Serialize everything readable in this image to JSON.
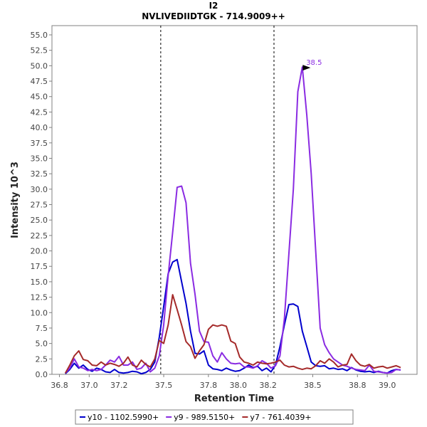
{
  "chart_data": {
    "type": "line",
    "title": "I2",
    "subtitle": "NVLIVEDIIDTGK - 714.9009++",
    "xlabel": "Retention Time",
    "ylabel": "Intensity 10^3",
    "xlim": [
      36.75,
      39.2
    ],
    "ylim": [
      0,
      56.5
    ],
    "x_ticks": [
      36.8,
      37.0,
      37.2,
      37.5,
      37.8,
      38.0,
      38.2,
      38.5,
      38.8,
      39.0
    ],
    "x_tick_labels": [
      "36.8",
      "37.0",
      "37.2",
      "37.5",
      "37.8",
      "38.0",
      "38.2",
      "38.5",
      "38.8",
      "39.0"
    ],
    "y_ticks": [
      0,
      2.5,
      5,
      7.5,
      10,
      12.5,
      15,
      17.5,
      20,
      22.5,
      25,
      27.5,
      30,
      32.5,
      35,
      37.5,
      40,
      42.5,
      45,
      47.5,
      50,
      52.5,
      55
    ],
    "y_tick_labels": [
      "0.0",
      "2.5",
      "5.0",
      "7.5",
      "10.0",
      "12.5",
      "15.0",
      "17.5",
      "20.0",
      "22.5",
      "25.0",
      "27.5",
      "30.0",
      "32.5",
      "35.0",
      "37.5",
      "40.0",
      "42.5",
      "45.0",
      "47.5",
      "50.0",
      "52.5",
      "55.0"
    ],
    "grid": false,
    "legend_position": "bottom",
    "boundaries": [
      37.48,
      38.24
    ],
    "annotation": {
      "label": "38.5",
      "x": 38.49,
      "y": 49.8,
      "color": "#8a2be2"
    },
    "series": [
      {
        "name": "y10 - 1102.5990+",
        "color": "#0000cd",
        "x": [
          36.84,
          36.87,
          36.9,
          36.93,
          36.96,
          36.99,
          37.02,
          37.05,
          37.08,
          37.11,
          37.14,
          37.17,
          37.2,
          37.23,
          37.26,
          37.29,
          37.32,
          37.35,
          37.38,
          37.41,
          37.44,
          37.47,
          37.5,
          37.53,
          37.56,
          37.59,
          37.62,
          37.65,
          37.68,
          37.71,
          37.74,
          37.77,
          37.8,
          37.83,
          37.86,
          37.89,
          37.92,
          37.95,
          37.98,
          38.01,
          38.04,
          38.07,
          38.1,
          38.13,
          38.16,
          38.19,
          38.22,
          38.25,
          38.28,
          38.31,
          38.34,
          38.37,
          38.4,
          38.43,
          38.46,
          38.49,
          38.52,
          38.55,
          38.58,
          38.61,
          38.64,
          38.67,
          38.7,
          38.73,
          38.76,
          38.79,
          38.82,
          38.85,
          38.88,
          38.91,
          38.94,
          38.97,
          39.0,
          39.03,
          39.06,
          39.09
        ],
        "y": [
          0.1,
          0.8,
          1.8,
          1.0,
          1.5,
          0.8,
          0.5,
          1.0,
          0.8,
          0.4,
          0.3,
          0.8,
          0.3,
          0.2,
          0.3,
          0.5,
          0.4,
          0.1,
          0.3,
          0.8,
          2.0,
          6.0,
          11.0,
          16.3,
          18.2,
          18.6,
          15.0,
          11.5,
          7.0,
          3.4,
          3.3,
          3.8,
          1.5,
          0.9,
          0.8,
          0.6,
          1.0,
          0.7,
          0.5,
          0.6,
          1.0,
          1.5,
          1.1,
          1.3,
          0.6,
          1.0,
          0.4,
          1.5,
          4.5,
          8.0,
          11.3,
          11.4,
          11.0,
          7.0,
          4.5,
          2.0,
          1.4,
          1.3,
          1.4,
          0.9,
          1.0,
          0.8,
          0.9,
          0.6,
          1.1,
          0.7,
          0.5,
          0.4,
          0.5,
          0.3,
          0.5,
          0.3,
          0.2,
          0.6,
          0.8,
          0.7
        ]
      },
      {
        "name": "y9 - 989.5150+",
        "color": "#8a2be2",
        "x": [
          36.84,
          36.87,
          36.9,
          36.93,
          36.96,
          36.99,
          37.02,
          37.05,
          37.08,
          37.11,
          37.14,
          37.17,
          37.2,
          37.23,
          37.26,
          37.29,
          37.32,
          37.35,
          37.38,
          37.41,
          37.44,
          37.47,
          37.5,
          37.53,
          37.56,
          37.59,
          37.62,
          37.65,
          37.68,
          37.71,
          37.74,
          37.77,
          37.8,
          37.83,
          37.86,
          37.89,
          37.92,
          37.95,
          37.98,
          38.01,
          38.04,
          38.07,
          38.1,
          38.13,
          38.16,
          38.19,
          38.22,
          38.25,
          38.28,
          38.31,
          38.34,
          38.37,
          38.4,
          38.43,
          38.46,
          38.49,
          38.52,
          38.55,
          38.58,
          38.61,
          38.64,
          38.67,
          38.7,
          38.73,
          38.76,
          38.79,
          38.82,
          38.85,
          38.88,
          38.91,
          38.94,
          38.97,
          39.0,
          39.03,
          39.06,
          39.09
        ],
        "y": [
          0.2,
          1.0,
          2.5,
          1.2,
          1.0,
          0.6,
          0.8,
          0.6,
          0.8,
          1.5,
          2.3,
          2.0,
          2.9,
          1.5,
          1.5,
          2.0,
          0.8,
          1.0,
          1.8,
          0.4,
          1.0,
          3.0,
          8.0,
          16.0,
          23.0,
          30.3,
          30.5,
          27.8,
          18.0,
          13.0,
          7.0,
          5.3,
          5.2,
          3.0,
          2.0,
          3.5,
          2.5,
          1.8,
          1.7,
          1.8,
          1.2,
          1.2,
          1.0,
          1.4,
          2.2,
          1.8,
          1.0,
          1.4,
          3.0,
          9.0,
          19.5,
          30.0,
          45.8,
          49.8,
          42.0,
          32.5,
          20.0,
          7.5,
          4.8,
          3.5,
          2.5,
          2.0,
          1.5,
          1.3,
          1.0,
          0.8,
          0.7,
          0.6,
          1.5,
          0.5,
          0.4,
          0.3,
          0.2,
          0.3,
          0.8,
          0.7
        ]
      },
      {
        "name": "y7 - 761.4039+",
        "color": "#a52a2a",
        "x": [
          36.84,
          36.87,
          36.9,
          36.93,
          36.96,
          36.99,
          37.02,
          37.05,
          37.08,
          37.11,
          37.14,
          37.17,
          37.2,
          37.23,
          37.26,
          37.29,
          37.32,
          37.35,
          37.38,
          37.41,
          37.44,
          37.47,
          37.5,
          37.53,
          37.56,
          37.59,
          37.62,
          37.65,
          37.68,
          37.71,
          37.74,
          37.77,
          37.8,
          37.83,
          37.86,
          37.89,
          37.92,
          37.95,
          37.98,
          38.01,
          38.04,
          38.07,
          38.1,
          38.13,
          38.16,
          38.19,
          38.22,
          38.25,
          38.28,
          38.31,
          38.34,
          38.37,
          38.4,
          38.43,
          38.46,
          38.49,
          38.52,
          38.55,
          38.58,
          38.61,
          38.64,
          38.67,
          38.7,
          38.73,
          38.76,
          38.79,
          38.82,
          38.85,
          38.88,
          38.91,
          38.94,
          38.97,
          39.0,
          39.03,
          39.06,
          39.09
        ],
        "y": [
          0.2,
          1.5,
          3.0,
          3.8,
          2.4,
          2.2,
          1.5,
          1.4,
          2.0,
          1.5,
          1.8,
          1.6,
          1.3,
          1.8,
          2.8,
          1.5,
          1.2,
          2.3,
          1.6,
          1.2,
          2.5,
          5.5,
          5.0,
          8.0,
          12.9,
          10.5,
          8.0,
          5.3,
          4.5,
          2.6,
          3.8,
          4.8,
          7.3,
          8.0,
          7.8,
          8.0,
          7.8,
          5.4,
          5.0,
          2.8,
          2.0,
          1.8,
          1.5,
          2.0,
          1.8,
          1.7,
          1.8,
          2.0,
          2.3,
          1.5,
          1.2,
          1.3,
          1.0,
          0.8,
          1.0,
          0.9,
          1.4,
          2.2,
          1.8,
          2.5,
          2.0,
          1.2,
          1.5,
          1.6,
          3.3,
          2.2,
          1.5,
          1.3,
          1.6,
          1.0,
          1.2,
          1.3,
          1.0,
          1.2,
          1.4,
          1.1
        ]
      }
    ]
  }
}
